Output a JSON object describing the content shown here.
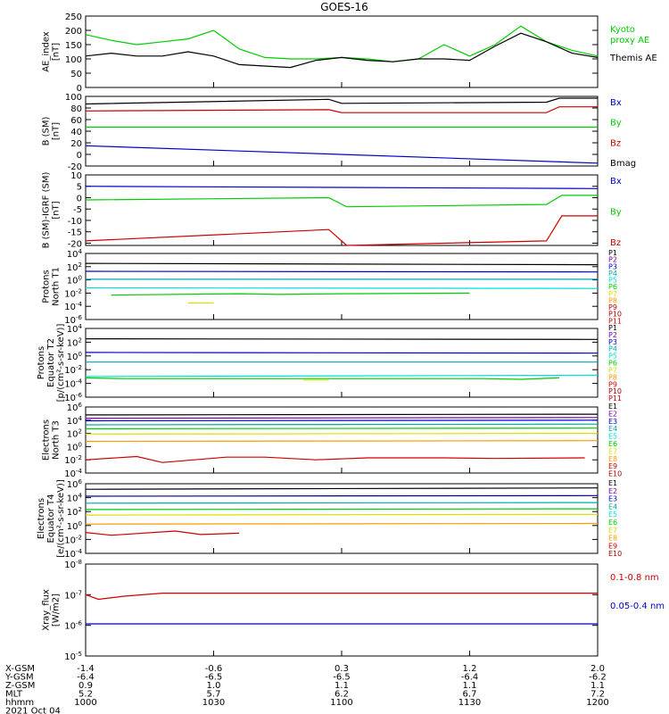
{
  "title": "GOES-16",
  "colors": {
    "black": "#000000",
    "blue": "#0000cc",
    "green": "#00cc00",
    "red": "#cc0000",
    "teal": "#00aaaa",
    "cyan": "#00dddd",
    "purple": "#7700aa",
    "yellow": "#dddd00",
    "orange": "#ff9900",
    "darkred": "#aa0000",
    "navy": "#000088",
    "sky": "#00bbee"
  },
  "chart_data": [
    {
      "type": "line",
      "ylabel": "AE_index\n[nT]",
      "yticks": [
        "0",
        "50",
        "100",
        "150",
        "200",
        "250"
      ],
      "yrange": [
        0,
        250
      ],
      "series": [
        {
          "name": "Kyoto\nproxy AE",
          "color": "green",
          "x": [
            0,
            10,
            20,
            30,
            40,
            50,
            60,
            70,
            80,
            90,
            100,
            110,
            120,
            130,
            140,
            150,
            160,
            170,
            180,
            190,
            200
          ],
          "values": [
            185,
            165,
            150,
            160,
            170,
            200,
            135,
            105,
            100,
            100,
            105,
            100,
            90,
            100,
            150,
            110,
            150,
            215,
            160,
            130,
            110
          ]
        },
        {
          "name": "Themis AE",
          "color": "black",
          "x": [
            0,
            10,
            20,
            30,
            40,
            50,
            60,
            70,
            80,
            90,
            100,
            110,
            120,
            130,
            140,
            150,
            160,
            170,
            180,
            190,
            200
          ],
          "values": [
            110,
            120,
            110,
            110,
            125,
            110,
            80,
            75,
            70,
            95,
            105,
            95,
            90,
            100,
            100,
            95,
            145,
            190,
            160,
            120,
            105
          ]
        }
      ]
    },
    {
      "type": "line",
      "ylabel": "B (SM)\n[nT]",
      "yticks": [
        "-20",
        "0",
        "20",
        "40",
        "60",
        "80",
        "100"
      ],
      "yrange": [
        -20,
        100
      ],
      "series": [
        {
          "name": "Bx",
          "color": "blue",
          "x": [
            0,
            200
          ],
          "values": [
            15,
            -15
          ]
        },
        {
          "name": "By",
          "color": "green",
          "x": [
            0,
            200
          ],
          "values": [
            47,
            47
          ]
        },
        {
          "name": "Bz",
          "color": "red",
          "x": [
            0,
            95,
            100,
            180,
            185,
            200
          ],
          "values": [
            75,
            77,
            72,
            72,
            82,
            82
          ]
        },
        {
          "name": "Bmag",
          "color": "black",
          "x": [
            0,
            95,
            100,
            180,
            185,
            200
          ],
          "values": [
            87,
            95,
            88,
            90,
            97,
            97
          ]
        }
      ]
    },
    {
      "type": "line",
      "ylabel": "B (SM)-IGRF (SM)\n[nT]",
      "yticks": [
        "-20",
        "-15",
        "-10",
        "-5",
        "0",
        "5",
        "10"
      ],
      "yrange": [
        -21,
        10
      ],
      "series": [
        {
          "name": "Bx",
          "color": "blue",
          "x": [
            0,
            200
          ],
          "values": [
            5,
            4
          ]
        },
        {
          "name": "By",
          "color": "green",
          "x": [
            0,
            95,
            102,
            180,
            186,
            200
          ],
          "values": [
            -1,
            0,
            -4,
            -3,
            1,
            1
          ]
        },
        {
          "name": "Bz",
          "color": "red",
          "x": [
            0,
            95,
            102,
            180,
            186,
            200
          ],
          "values": [
            -19,
            -14,
            -21,
            -19,
            -8,
            -8
          ]
        }
      ]
    },
    {
      "type": "line",
      "ylabel": "Protons\nNorth T1",
      "yticks": [
        "10^4",
        "10^2",
        "10^0",
        "10^-2",
        "10^-4",
        "10^-6"
      ],
      "yrange": [
        -6,
        4
      ],
      "legend": [
        "P1",
        "P2",
        "P3",
        "P4",
        "P5",
        "P6",
        "P7",
        "P8",
        "P9",
        "P10",
        "P11"
      ],
      "series": [
        {
          "name": "P1",
          "color": "black",
          "x": [
            0,
            200
          ],
          "values": [
            2.5,
            2.3
          ]
        },
        {
          "name": "P2",
          "color": "blue",
          "x": [
            0,
            200
          ],
          "values": [
            1.3,
            1.2
          ]
        },
        {
          "name": "P3",
          "color": "teal",
          "x": [
            0,
            200
          ],
          "values": [
            0.1,
            0.1
          ]
        },
        {
          "name": "P4",
          "color": "cyan",
          "x": [
            0,
            200
          ],
          "values": [
            -1.2,
            -1.3
          ]
        },
        {
          "name": "P5",
          "color": "green",
          "x": [
            10,
            60,
            75,
            100,
            150
          ],
          "values": [
            -2.3,
            -2.1,
            -2.2,
            -2.1,
            -2.0
          ]
        },
        {
          "name": "P6",
          "color": "yellow",
          "x": [
            40,
            50
          ],
          "values": [
            -3.5,
            -3.5
          ]
        }
      ]
    },
    {
      "type": "line",
      "ylabel": "Protons\nEquator T2\n[p/(cm²-s-sr-keV)]",
      "yticks": [
        "10^4",
        "10^2",
        "10^0",
        "10^-2",
        "10^-4",
        "10^-6"
      ],
      "yrange": [
        -6,
        4
      ],
      "legend": [
        "P1",
        "P2",
        "P3",
        "P4",
        "P5",
        "P6",
        "P7",
        "P8",
        "P9",
        "P10",
        "P11"
      ],
      "series": [
        {
          "name": "P1",
          "color": "black",
          "x": [
            0,
            200
          ],
          "values": [
            2.5,
            2.4
          ]
        },
        {
          "name": "P2",
          "color": "blue",
          "x": [
            0,
            200
          ],
          "values": [
            0.5,
            0.4
          ]
        },
        {
          "name": "P3",
          "color": "teal",
          "x": [
            0,
            200
          ],
          "values": [
            -0.9,
            -0.9
          ]
        },
        {
          "name": "P4",
          "color": "cyan",
          "x": [
            0,
            200
          ],
          "values": [
            -3.0,
            -2.8
          ]
        },
        {
          "name": "P5",
          "color": "green",
          "x": [
            0,
            15,
            155,
            170,
            185
          ],
          "values": [
            -3.2,
            -3.3,
            -3.3,
            -3.4,
            -3.2
          ]
        },
        {
          "name": "P6",
          "color": "yellow",
          "x": [
            85,
            95
          ],
          "values": [
            -3.5,
            -3.5
          ]
        }
      ]
    },
    {
      "type": "line",
      "ylabel": "Electrons\nNorth T3",
      "yticks": [
        "10^6",
        "10^4",
        "10^2",
        "10^0",
        "10^-2",
        "10^-4"
      ],
      "yrange": [
        -4,
        6
      ],
      "legend": [
        "E1",
        "E2",
        "E3",
        "E4",
        "E5",
        "E6",
        "E7",
        "E8",
        "E9",
        "E10"
      ],
      "series": [
        {
          "name": "E1",
          "color": "black",
          "x": [
            0,
            200
          ],
          "values": [
            4.8,
            4.9
          ]
        },
        {
          "name": "E2",
          "color": "purple",
          "x": [
            0,
            200
          ],
          "values": [
            4.3,
            4.4
          ]
        },
        {
          "name": "E3",
          "color": "blue",
          "x": [
            0,
            200
          ],
          "values": [
            3.9,
            4.0
          ]
        },
        {
          "name": "E4",
          "color": "teal",
          "x": [
            0,
            200
          ],
          "values": [
            3.3,
            3.4
          ]
        },
        {
          "name": "E5",
          "color": "green",
          "x": [
            0,
            200
          ],
          "values": [
            2.7,
            2.8
          ]
        },
        {
          "name": "E6",
          "color": "yellow",
          "x": [
            0,
            200
          ],
          "values": [
            1.9,
            2.0
          ]
        },
        {
          "name": "E7",
          "color": "orange",
          "x": [
            0,
            200
          ],
          "values": [
            0.8,
            0.9
          ]
        },
        {
          "name": "E8",
          "color": "red",
          "x": [
            0,
            20,
            30,
            55,
            70,
            90,
            110,
            140,
            160,
            195
          ],
          "values": [
            -2.0,
            -1.5,
            -2.4,
            -1.6,
            -1.6,
            -2.0,
            -1.7,
            -1.7,
            -1.8,
            -1.7
          ]
        }
      ]
    },
    {
      "type": "line",
      "ylabel": "Electrons\nEquator T4\n[e/(cm²-s-sr-keV)]",
      "yticks": [
        "10^6",
        "10^4",
        "10^2",
        "10^0",
        "10^-2",
        "10^-4"
      ],
      "yrange": [
        -4,
        6
      ],
      "legend": [
        "E1",
        "E2",
        "E3",
        "E4",
        "E5",
        "E6",
        "E7",
        "E8",
        "E9",
        "E10"
      ],
      "series": [
        {
          "name": "E1",
          "color": "black",
          "x": [
            0,
            200
          ],
          "values": [
            5.2,
            5.4
          ]
        },
        {
          "name": "E2",
          "color": "navy",
          "x": [
            0,
            200
          ],
          "values": [
            4.2,
            4.3
          ]
        },
        {
          "name": "E3",
          "color": "teal",
          "x": [
            0,
            200
          ],
          "values": [
            3.2,
            3.3
          ]
        },
        {
          "name": "E4",
          "color": "green",
          "x": [
            0,
            200
          ],
          "values": [
            2.3,
            2.4
          ]
        },
        {
          "name": "E5",
          "color": "yellow",
          "x": [
            0,
            200
          ],
          "values": [
            1.5,
            1.6
          ]
        },
        {
          "name": "E6",
          "color": "orange",
          "x": [
            0,
            200
          ],
          "values": [
            0.2,
            0.3
          ]
        },
        {
          "name": "E7",
          "color": "red",
          "x": [
            0,
            10,
            35,
            45,
            60
          ],
          "values": [
            -1.0,
            -1.4,
            -0.8,
            -1.3,
            -1.1
          ]
        }
      ]
    },
    {
      "type": "line",
      "ylabel": "Xray_flux\n[W/m2]",
      "yticks": [
        "10^-8",
        "10^-7",
        "10^-6",
        "10^-5"
      ],
      "yrange": [
        -8,
        -5
      ],
      "yreversed": true,
      "series": [
        {
          "name": "0.1-0.8 nm",
          "color": "red",
          "x": [
            0,
            5,
            15,
            30,
            200
          ],
          "values": [
            -7.0,
            -6.85,
            -6.95,
            -7.05,
            -7.05
          ]
        },
        {
          "name": "0.05-0.4 nm",
          "color": "blue",
          "x": [
            0,
            200
          ],
          "values": [
            -6.05,
            -6.05
          ]
        }
      ]
    }
  ],
  "xaxis": {
    "rows": [
      {
        "label": "X-GSM",
        "values": [
          "-1.4",
          "-0.6",
          "0.3",
          "1.2",
          "2.0"
        ]
      },
      {
        "label": "Y-GSM",
        "values": [
          "-6.4",
          "-6.5",
          "-6.5",
          "-6.4",
          "-6.2"
        ]
      },
      {
        "label": "Z-GSM",
        "values": [
          "0.9",
          "1.0",
          "1.1",
          "1.1",
          "1.1"
        ]
      },
      {
        "label": "MLT",
        "values": [
          "5.2",
          "5.7",
          "6.2",
          "6.7",
          "7.2"
        ]
      },
      {
        "label": "hhmm",
        "values": [
          "1000",
          "1030",
          "1100",
          "1130",
          "1200"
        ]
      }
    ],
    "date": "2021 Oct 04"
  }
}
